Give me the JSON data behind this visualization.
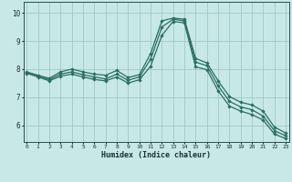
{
  "xlabel": "Humidex (Indice chaleur)",
  "background_color": "#c8e8e8",
  "line_color": "#2a6e62",
  "grid_color": "#a0c8c8",
  "x_ticks": [
    0,
    1,
    2,
    3,
    4,
    5,
    6,
    7,
    8,
    9,
    10,
    11,
    12,
    13,
    14,
    15,
    16,
    17,
    18,
    19,
    20,
    21,
    22,
    23
  ],
  "y_ticks": [
    6,
    7,
    8,
    9,
    10
  ],
  "ylim": [
    5.4,
    10.4
  ],
  "xlim": [
    -0.3,
    23.3
  ],
  "series1": [
    7.9,
    7.78,
    7.67,
    7.9,
    8.0,
    7.9,
    7.82,
    7.78,
    7.95,
    7.7,
    7.8,
    8.55,
    9.72,
    9.82,
    9.78,
    8.38,
    8.22,
    7.58,
    7.02,
    6.82,
    6.72,
    6.5,
    5.93,
    5.72
  ],
  "series2": [
    7.88,
    7.75,
    7.62,
    7.82,
    7.9,
    7.8,
    7.72,
    7.65,
    7.82,
    7.6,
    7.72,
    8.35,
    9.5,
    9.78,
    9.72,
    8.25,
    8.12,
    7.4,
    6.85,
    6.65,
    6.55,
    6.32,
    5.8,
    5.62
  ],
  "series3": [
    7.85,
    7.72,
    7.58,
    7.75,
    7.82,
    7.72,
    7.63,
    7.58,
    7.72,
    7.5,
    7.62,
    8.1,
    9.2,
    9.7,
    9.65,
    8.08,
    7.98,
    7.22,
    6.68,
    6.5,
    6.38,
    6.18,
    5.68,
    5.52
  ]
}
